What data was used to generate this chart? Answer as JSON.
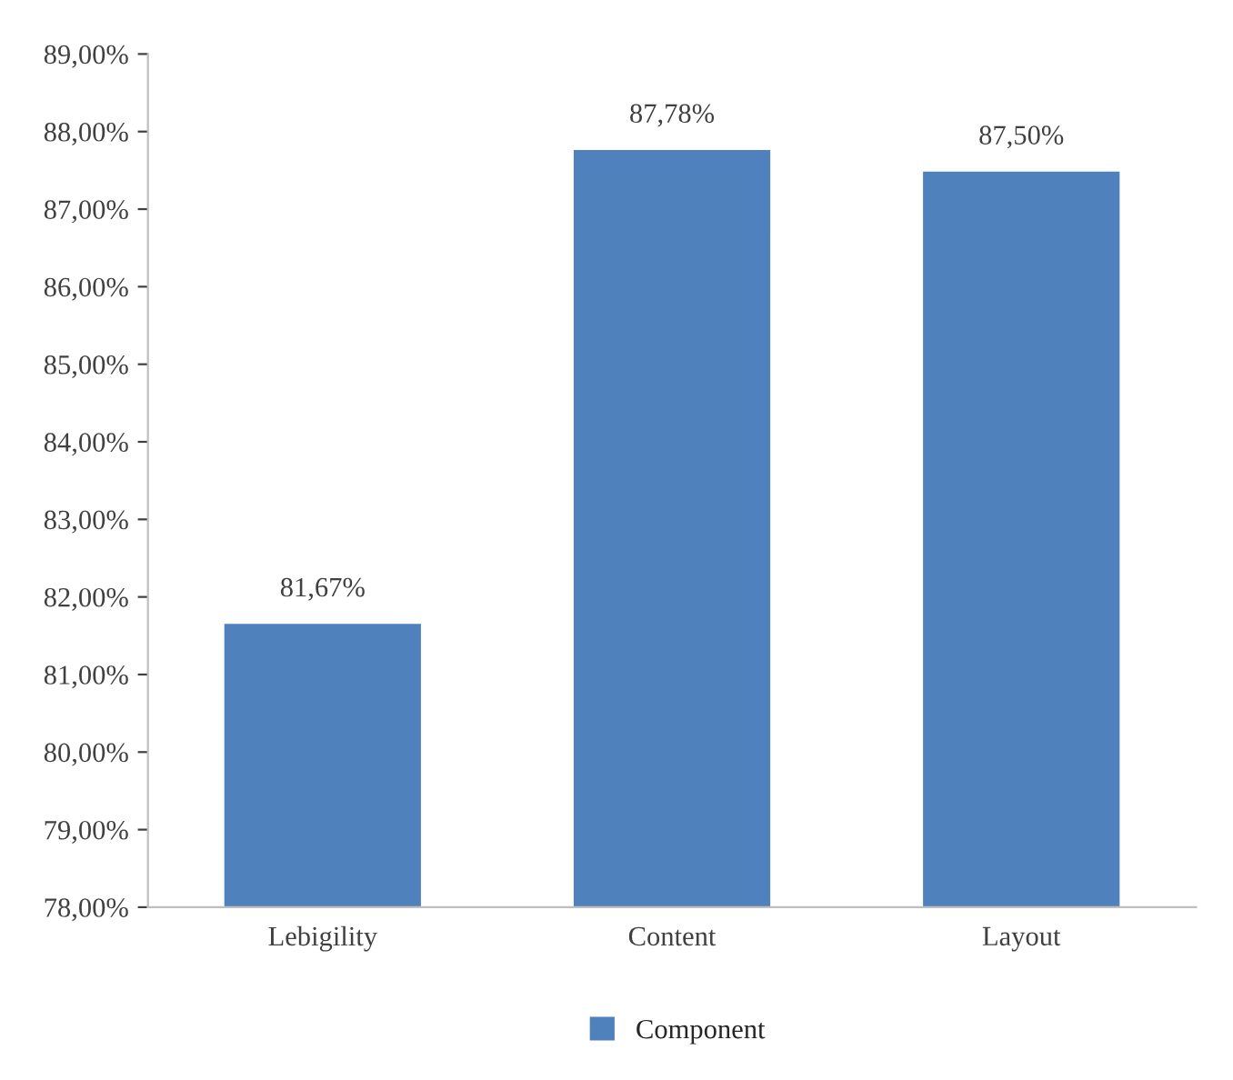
{
  "chart_data": {
    "type": "bar",
    "categories": [
      "Lebigility",
      "Content",
      "Layout"
    ],
    "series": [
      {
        "name": "Component",
        "color": "#4f81bd",
        "values": [
          81.67,
          87.78,
          87.5
        ]
      }
    ],
    "value_labels": [
      "81,67%",
      "87,78%",
      "87,50%"
    ],
    "ylim": [
      78,
      89
    ],
    "yticks": [
      {
        "value": 78,
        "label": "78,00%"
      },
      {
        "value": 79,
        "label": "79,00%"
      },
      {
        "value": 80,
        "label": "80,00%"
      },
      {
        "value": 81,
        "label": "81,00%"
      },
      {
        "value": 82,
        "label": "82,00%"
      },
      {
        "value": 83,
        "label": "83,00%"
      },
      {
        "value": 84,
        "label": "84,00%"
      },
      {
        "value": 85,
        "label": "85,00%"
      },
      {
        "value": 86,
        "label": "86,00%"
      },
      {
        "value": 87,
        "label": "87,00%"
      },
      {
        "value": 88,
        "label": "88,00%"
      },
      {
        "value": 89,
        "label": "89,00%"
      }
    ],
    "grid": false,
    "legend": "bottom"
  }
}
